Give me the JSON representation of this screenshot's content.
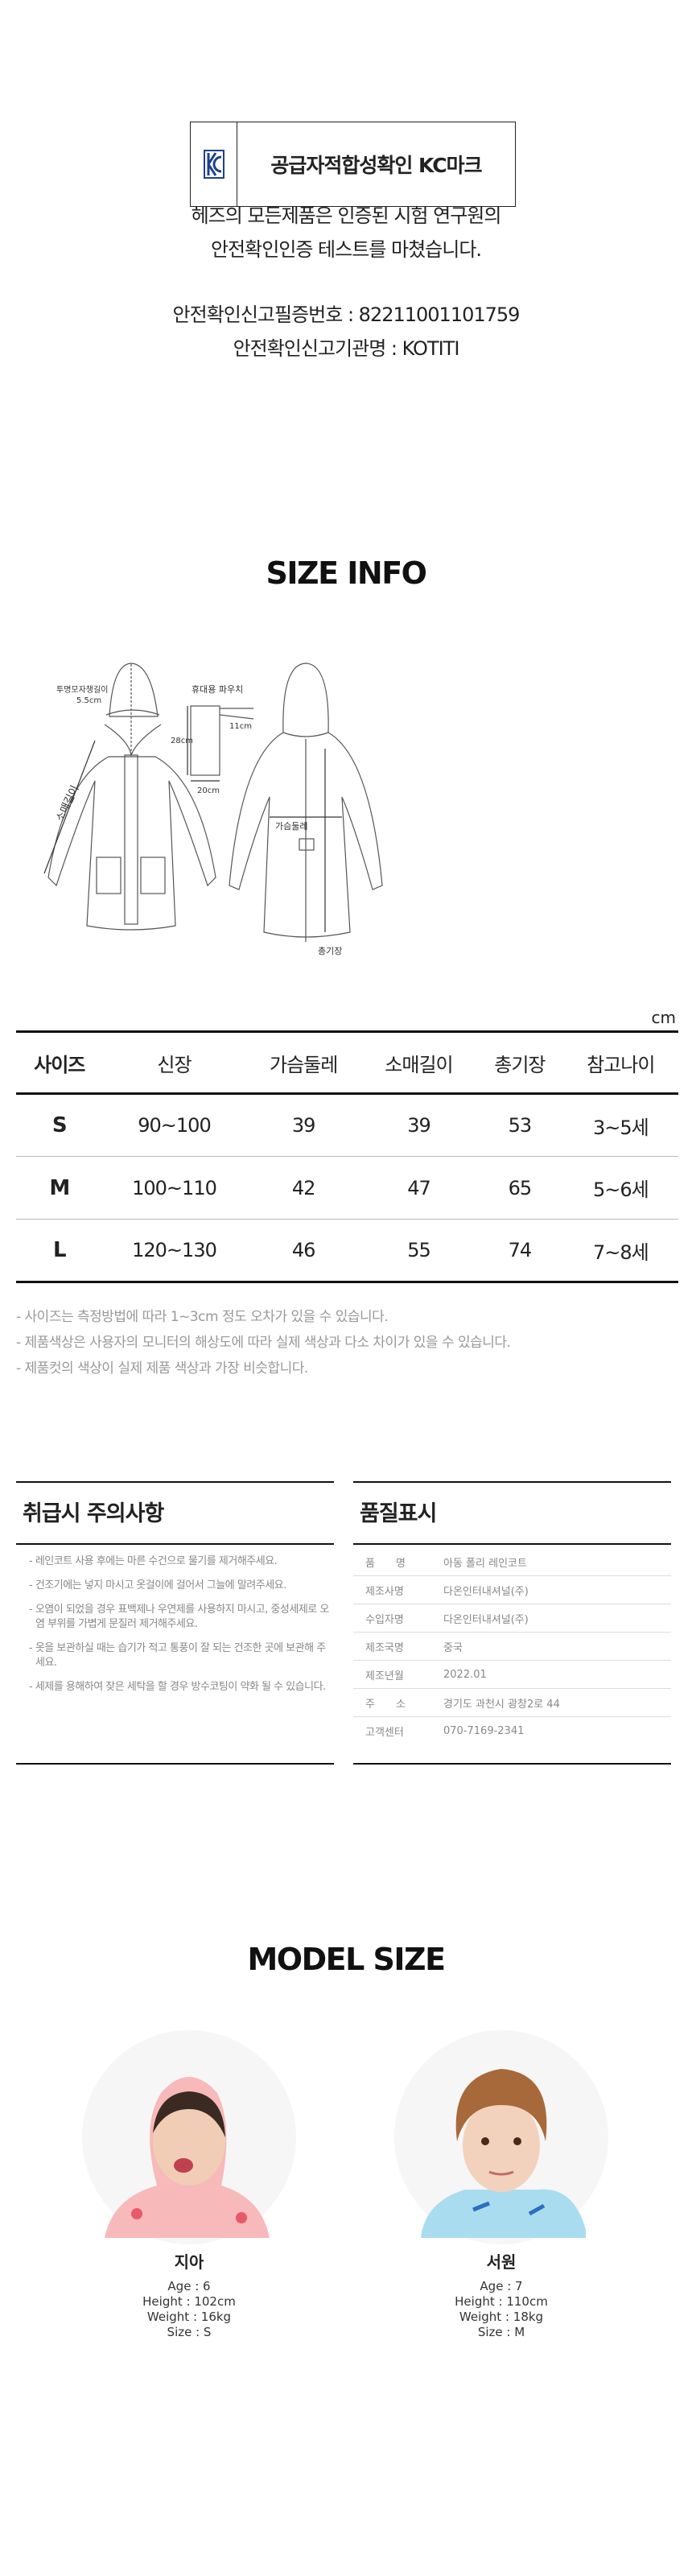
{
  "kc": {
    "title": "공급자적합성확인 KC마크",
    "logo": "KC"
  },
  "intro": {
    "line1": "헤즈의 모든제품은 인증된 시험 연구원의",
    "line2": "안전확인인증 테스트를 마쳤습니다.",
    "cert_no": "안전확인신고필증번호 : 82211001101759",
    "cert_org": "안전확인신고기관명 : KOTITI"
  },
  "size_info": {
    "title": "SIZE INFO",
    "diagram": {
      "hood_label": "투명모자챙길이",
      "hood_value": "5.5cm",
      "sleeve_label": "소매길이",
      "pouch_label": "휴대용 파우치",
      "pouch_h": "28cm",
      "pouch_w": "20cm",
      "pouch_strap": "11cm",
      "chest_label": "가슴둘레",
      "length_label": "총기장"
    },
    "unit": "cm",
    "headers": [
      "사이즈",
      "신장",
      "가슴둘레",
      "소매길이",
      "총기장",
      "참고나이"
    ],
    "rows": [
      [
        "S",
        "90~100",
        "39",
        "39",
        "53",
        "3~5세"
      ],
      [
        "M",
        "100~110",
        "42",
        "47",
        "65",
        "5~6세"
      ],
      [
        "L",
        "120~130",
        "46",
        "55",
        "74",
        "7~8세"
      ]
    ],
    "notes": [
      "- 사이즈는 측정방법에 따라 1~3cm 정도 오차가 있을 수 있습니다.",
      "- 제품색상은 사용자의 모니터의 해상도에 따라 실제 색상과 다소 차이가 있을 수 있습니다.",
      "- 제품컷의 색상이 실제 제품 색상과 가장 비슷합니다."
    ]
  },
  "care": {
    "title": "취급시 주의사항",
    "items": [
      "- 레인코트 사용 후에는 마른 수건으로 물기를 제거해주세요.",
      "- 건조기에는 넣지 마시고 옷걸이에 걸어서 그늘에 말려주세요.",
      "- 오염이 되었을 경우 표백제나 우연제를 사용하지 마시고, 중성세제로 오염 부위를 가볍게 문질러 제거해주세요.",
      "- 옷을 보관하실 때는 습기가 적고 통풍이 잘 되는 건조한 곳에 보관해 주세요.",
      "- 세제를 용해하여 잦은 세탁을 할 경우 방수코팅이 약화  될 수 있습니다."
    ]
  },
  "quality": {
    "title": "품질표시",
    "rows": [
      [
        "품　　명",
        "아동 폴리 레인코트"
      ],
      [
        "제조사명",
        "다온인터내셔널(주)"
      ],
      [
        "수입자명",
        "다온인터내셔널(주)"
      ],
      [
        "제조국명",
        "중국"
      ],
      [
        "제조년월",
        "2022.01"
      ],
      [
        "주　　소",
        "경기도 과천시 광창2로 44"
      ],
      [
        "고객센터",
        "070-7169-2341"
      ]
    ]
  },
  "models": {
    "title": "MODEL SIZE",
    "list": [
      {
        "name": "지아",
        "age": "Age : 6",
        "height": "Height : 102cm",
        "weight": "Weight : 16kg",
        "size": "Size : S"
      },
      {
        "name": "서원",
        "age": "Age : 7",
        "height": "Height : 110cm",
        "weight": "Weight : 18kg",
        "size": "Size : M"
      }
    ]
  },
  "colors": {
    "kc_blue": "#1f3f8f",
    "text_gray": "#999999",
    "girl_coat": "#f7b9b9",
    "boy_coat": "#a9dcef"
  }
}
